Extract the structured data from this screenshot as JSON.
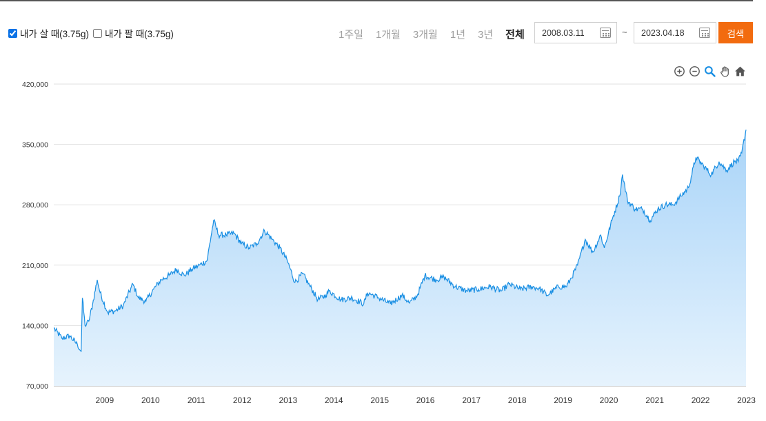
{
  "filters": {
    "buy": {
      "label": "내가 살 때(3.75g)",
      "checked": true
    },
    "sell": {
      "label": "내가 팔 때(3.75g)",
      "checked": false
    }
  },
  "periods": [
    {
      "label": "1주일",
      "active": false
    },
    {
      "label": "1개월",
      "active": false
    },
    {
      "label": "3개월",
      "active": false
    },
    {
      "label": "1년",
      "active": false
    },
    {
      "label": "3년",
      "active": false
    },
    {
      "label": "전체",
      "active": true
    }
  ],
  "date_range": {
    "start": "2008.03.11",
    "separator": "~",
    "end": "2023.04.18"
  },
  "search_label": "검색",
  "toolbar": [
    "zoom-in-icon",
    "zoom-out-icon",
    "magnifier-icon",
    "pan-hand-icon",
    "home-icon"
  ],
  "colors": {
    "line": "#1a8fe3",
    "fill_top": "#a9d4f8",
    "fill_bottom": "#e6f3fd",
    "accent": "#f26b0f"
  },
  "chart_data": {
    "type": "area",
    "title": "",
    "xlabel": "",
    "ylabel": "",
    "x_range": [
      "2008.03.11",
      "2023.04.18"
    ],
    "ylim": [
      70000,
      420000
    ],
    "y_ticks": [
      70000,
      140000,
      210000,
      280000,
      350000,
      420000
    ],
    "y_tick_labels": [
      "70,000",
      "140,000",
      "210,000",
      "280,000",
      "350,000",
      "420,000"
    ],
    "x_tick_labels": [
      "2009",
      "2010",
      "2011",
      "2012",
      "2013",
      "2014",
      "2015",
      "2016",
      "2017",
      "2018",
      "2019",
      "2020",
      "2021",
      "2022",
      "2023"
    ],
    "grid": true,
    "legend": "none",
    "series": [
      {
        "x": [
          "2008.03.11",
          "2008.05",
          "2008.07",
          "2008.09",
          "2008.10.15",
          "2008.10.25",
          "2008.11",
          "2008.12",
          "2009.01",
          "2009.02.20",
          "2009.03",
          "2009.05",
          "2009.07",
          "2009.09",
          "2009.12.01",
          "2010.01",
          "2010.03",
          "2010.05",
          "2010.07",
          "2010.09",
          "2010.11",
          "2011.01",
          "2011.03",
          "2011.05",
          "2011.07",
          "2011.09.06",
          "2011.10",
          "2011.12",
          "2012.02",
          "2012.04",
          "2012.06",
          "2012.08",
          "2012.10",
          "2012.12",
          "2013.02",
          "2013.04.15",
          "2013.06",
          "2013.08",
          "2013.10",
          "2013.12",
          "2014.02",
          "2014.03",
          "2014.06",
          "2014.09",
          "2014.12",
          "2015.01",
          "2015.04",
          "2015.07",
          "2015.10",
          "2015.12",
          "2016.02",
          "2016.04",
          "2016.07",
          "2016.09",
          "2016.12",
          "2017.03",
          "2017.06",
          "2017.09",
          "2017.12",
          "2018.02",
          "2018.05",
          "2018.08",
          "2018.10",
          "2018.12",
          "2019.03",
          "2019.05",
          "2019.06",
          "2019.08",
          "2019.10",
          "2019.12",
          "2020.02",
          "2020.03",
          "2020.05",
          "2020.07",
          "2020.08.07",
          "2020.09",
          "2020.11",
          "2021.01",
          "2021.03",
          "2021.05",
          "2021.07",
          "2021.09",
          "2021.11",
          "2022.01",
          "2022.03",
          "2022.05",
          "2022.07",
          "2022.09",
          "2022.11",
          "2023.01",
          "2023.02",
          "2023.03",
          "2023.04.18"
        ],
        "values": [
          137000,
          125000,
          128000,
          118000,
          110000,
          172000,
          140000,
          145000,
          165000,
          193000,
          178000,
          155000,
          157000,
          163000,
          188000,
          172000,
          168000,
          182000,
          193000,
          198000,
          205000,
          198000,
          205000,
          210000,
          215000,
          262000,
          245000,
          245000,
          247000,
          235000,
          230000,
          235000,
          250000,
          240000,
          230000,
          215000,
          190000,
          200000,
          185000,
          170000,
          175000,
          180000,
          170000,
          172000,
          165000,
          178000,
          172000,
          165000,
          175000,
          166000,
          175000,
          198000,
          193000,
          196000,
          185000,
          180000,
          182000,
          185000,
          180000,
          188000,
          182000,
          185000,
          183000,
          175000,
          185000,
          185000,
          192000,
          210000,
          240000,
          225000,
          245000,
          230000,
          262000,
          290000,
          315000,
          285000,
          275000,
          275000,
          262000,
          275000,
          280000,
          280000,
          290000,
          300000,
          335000,
          325000,
          315000,
          330000,
          320000,
          330000,
          330000,
          340000,
          367000
        ]
      }
    ]
  }
}
